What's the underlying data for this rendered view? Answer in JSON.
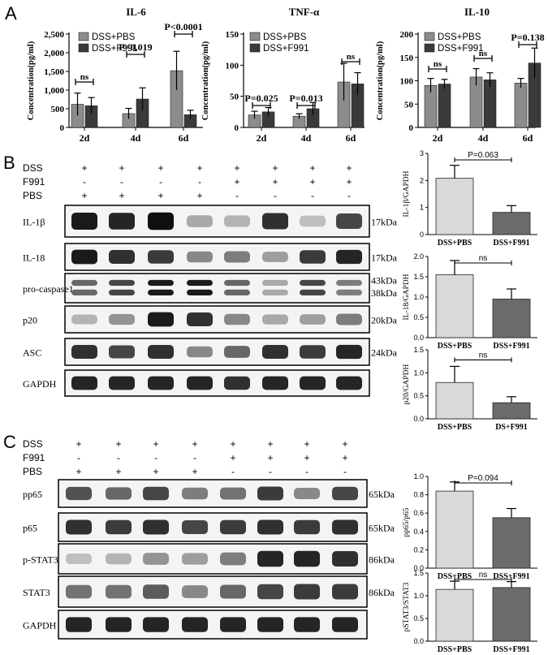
{
  "panels": {
    "A": "A",
    "B": "B",
    "C": "C"
  },
  "chart_data": [
    {
      "type": "bar",
      "id": "il6",
      "title": "IL-6",
      "ylabel": "Concentration(pg/ml)",
      "categories": [
        "2d",
        "4d",
        "6d"
      ],
      "ylim": [
        0,
        2500
      ],
      "yticks": [
        0,
        500,
        1000,
        1500,
        2000,
        2500
      ],
      "ytick_labels": [
        "0",
        "500",
        "1,000",
        "1,500",
        "2,000",
        "2,500"
      ],
      "series": [
        {
          "name": "DSS+PBS",
          "color": "#8c8c8c",
          "values": [
            620,
            370,
            1520
          ],
          "errors": [
            300,
            140,
            520
          ]
        },
        {
          "name": "DSS+F991",
          "color": "#3a3a3a",
          "values": [
            580,
            760,
            340
          ],
          "errors": [
            220,
            300,
            120
          ]
        }
      ],
      "annotations": [
        "ns",
        "P=0.019",
        "P<0.0001"
      ]
    },
    {
      "type": "bar",
      "id": "tnf",
      "title": "TNF-α",
      "ylabel": "Concentration(pg/ml)",
      "categories": [
        "2d",
        "4d",
        "6d"
      ],
      "ylim": [
        0,
        150
      ],
      "yticks": [
        0,
        50,
        100,
        150
      ],
      "ytick_labels": [
        "0",
        "50",
        "100",
        "150"
      ],
      "series": [
        {
          "name": "DSS+PBS",
          "color": "#8c8c8c",
          "values": [
            20,
            18,
            73
          ],
          "errors": [
            6,
            4,
            30
          ]
        },
        {
          "name": "DSS+F991",
          "color": "#3a3a3a",
          "values": [
            25,
            30,
            70
          ],
          "errors": [
            7,
            10,
            18
          ]
        }
      ],
      "annotations": [
        "P=0.025",
        "P=0.013",
        "ns"
      ]
    },
    {
      "type": "bar",
      "id": "il10",
      "title": "IL-10",
      "ylabel": "Concentration(pg/ml)",
      "categories": [
        "2d",
        "4d",
        "6d"
      ],
      "ylim": [
        0,
        200
      ],
      "yticks": [
        0,
        50,
        100,
        150,
        200
      ],
      "ytick_labels": [
        "0",
        "50",
        "100",
        "150",
        "200"
      ],
      "series": [
        {
          "name": "DSS+PBS",
          "color": "#8c8c8c",
          "values": [
            90,
            108,
            95
          ],
          "errors": [
            15,
            18,
            10
          ]
        },
        {
          "name": "DSS+F991",
          "color": "#3a3a3a",
          "values": [
            93,
            102,
            138
          ],
          "errors": [
            10,
            15,
            32
          ]
        }
      ],
      "annotations": [
        "ns",
        "ns",
        "P=0.138"
      ]
    },
    {
      "type": "bar",
      "id": "b1",
      "ylabel": "IL-1β/GAPDH",
      "categories": [
        "DSS+PBS",
        "DSS+F991"
      ],
      "values": [
        2.08,
        0.82
      ],
      "errors": [
        0.48,
        0.25
      ],
      "colors": [
        "#d9d9d9",
        "#6b6b6b"
      ],
      "ylim": [
        0,
        3
      ],
      "yticks": [
        0,
        1,
        2,
        3
      ],
      "ytick_labels": [
        "0",
        "1",
        "2",
        "3"
      ],
      "annotation": "P=0.063"
    },
    {
      "type": "bar",
      "id": "b2",
      "ylabel": "IL-18/GAPDH",
      "categories": [
        "DSS+PBS",
        "DSS+F991"
      ],
      "values": [
        1.55,
        0.95
      ],
      "errors": [
        0.35,
        0.25
      ],
      "colors": [
        "#d9d9d9",
        "#6b6b6b"
      ],
      "ylim": [
        0,
        2
      ],
      "yticks": [
        0,
        0.5,
        1,
        1.5,
        2
      ],
      "ytick_labels": [
        "0.0",
        "0.5",
        "1.0",
        "1.5",
        "2.0"
      ],
      "annotation": "ns"
    },
    {
      "type": "bar",
      "id": "b3",
      "ylabel": "p20/GAPDH",
      "categories": [
        "DSS+PBS",
        "DS+F991"
      ],
      "values": [
        0.79,
        0.35
      ],
      "errors": [
        0.35,
        0.13
      ],
      "colors": [
        "#d9d9d9",
        "#6b6b6b"
      ],
      "ylim": [
        0,
        1.5
      ],
      "yticks": [
        0,
        0.5,
        1,
        1.5
      ],
      "ytick_labels": [
        "0.0",
        "0.5",
        "1.0",
        "1.5"
      ],
      "annotation": "ns"
    },
    {
      "type": "bar",
      "id": "c1",
      "ylabel": "pp65/p65",
      "categories": [
        "DSS+PBS",
        "DSS+F991"
      ],
      "values": [
        0.84,
        0.55
      ],
      "errors": [
        0.1,
        0.1
      ],
      "colors": [
        "#d9d9d9",
        "#6b6b6b"
      ],
      "ylim": [
        0,
        1
      ],
      "yticks": [
        0,
        0.2,
        0.4,
        0.6,
        0.8,
        1
      ],
      "ytick_labels": [
        "0.0",
        "0.2",
        "0.4",
        "0.6",
        "0.8",
        "1.0"
      ],
      "annotation": "P=0.094"
    },
    {
      "type": "bar",
      "id": "c2",
      "ylabel": "pSTAT3/STAT3",
      "categories": [
        "DSS+PBS",
        "DSS+F991"
      ],
      "values": [
        1.14,
        1.18
      ],
      "errors": [
        0.18,
        0.13
      ],
      "colors": [
        "#d9d9d9",
        "#6b6b6b"
      ],
      "ylim": [
        0,
        1.5
      ],
      "yticks": [
        0,
        0.5,
        1,
        1.5
      ],
      "ytick_labels": [
        "0.0",
        "0.5",
        "1.0",
        "1.5"
      ],
      "annotation": "ns"
    }
  ],
  "blotB": {
    "conditions": [
      {
        "label": "DSS",
        "signs": [
          "+",
          "+",
          "+",
          "+",
          "+",
          "+",
          "+",
          "+"
        ]
      },
      {
        "label": "F991",
        "signs": [
          "-",
          "-",
          "-",
          "-",
          "+",
          "+",
          "+",
          "+"
        ]
      },
      {
        "label": "PBS",
        "signs": [
          "+",
          "+",
          "+",
          "+",
          "-",
          "-",
          "-",
          "-"
        ]
      }
    ],
    "rows": [
      {
        "label": "IL-1β",
        "kda": "17kDa",
        "intensity": [
          0.95,
          0.9,
          1.0,
          0.3,
          0.25,
          0.85,
          0.2,
          0.75
        ]
      },
      {
        "label": "IL-18",
        "kda": "17kDa",
        "intensity": [
          0.95,
          0.85,
          0.8,
          0.45,
          0.5,
          0.35,
          0.8,
          0.9
        ]
      },
      {
        "label": "pro-caspase1",
        "kda": "43kDa",
        "kda2": "38kDa",
        "intensity": [
          0.6,
          0.75,
          0.95,
          0.95,
          0.6,
          0.3,
          0.75,
          0.5
        ]
      },
      {
        "label": "p20",
        "kda": "20kDa",
        "intensity": [
          0.25,
          0.4,
          0.95,
          0.85,
          0.45,
          0.3,
          0.35,
          0.5
        ]
      },
      {
        "label": "ASC",
        "kda": "24kDa",
        "intensity": [
          0.85,
          0.75,
          0.85,
          0.45,
          0.6,
          0.85,
          0.8,
          0.9
        ]
      },
      {
        "label": "GAPDH",
        "kda": "",
        "intensity": [
          0.9,
          0.9,
          0.9,
          0.9,
          0.85,
          0.9,
          0.9,
          0.9
        ]
      }
    ]
  },
  "blotC": {
    "conditions": [
      {
        "label": "DSS",
        "signs": [
          "+",
          "+",
          "+",
          "+",
          "+",
          "+",
          "+",
          "+"
        ]
      },
      {
        "label": "F991",
        "signs": [
          "-",
          "-",
          "-",
          "-",
          "+",
          "+",
          "+",
          "+"
        ]
      },
      {
        "label": "PBS",
        "signs": [
          "+",
          "+",
          "+",
          "+",
          "-",
          "-",
          "-",
          "-"
        ]
      }
    ],
    "rows": [
      {
        "label": "pp65",
        "kda": "65kDa",
        "intensity": [
          0.7,
          0.6,
          0.75,
          0.5,
          0.55,
          0.8,
          0.45,
          0.75
        ]
      },
      {
        "label": "p65",
        "kda": "65kDa",
        "intensity": [
          0.85,
          0.8,
          0.85,
          0.75,
          0.8,
          0.85,
          0.8,
          0.85
        ]
      },
      {
        "label": "p-STAT3",
        "kda": "86kDa",
        "intensity": [
          0.2,
          0.25,
          0.4,
          0.35,
          0.5,
          0.9,
          0.9,
          0.85
        ]
      },
      {
        "label": "STAT3",
        "kda": "86kDa",
        "intensity": [
          0.55,
          0.55,
          0.65,
          0.45,
          0.6,
          0.75,
          0.8,
          0.8
        ]
      },
      {
        "label": "GAPDH",
        "kda": "",
        "intensity": [
          0.9,
          0.9,
          0.9,
          0.9,
          0.9,
          0.9,
          0.9,
          0.9
        ]
      }
    ]
  }
}
